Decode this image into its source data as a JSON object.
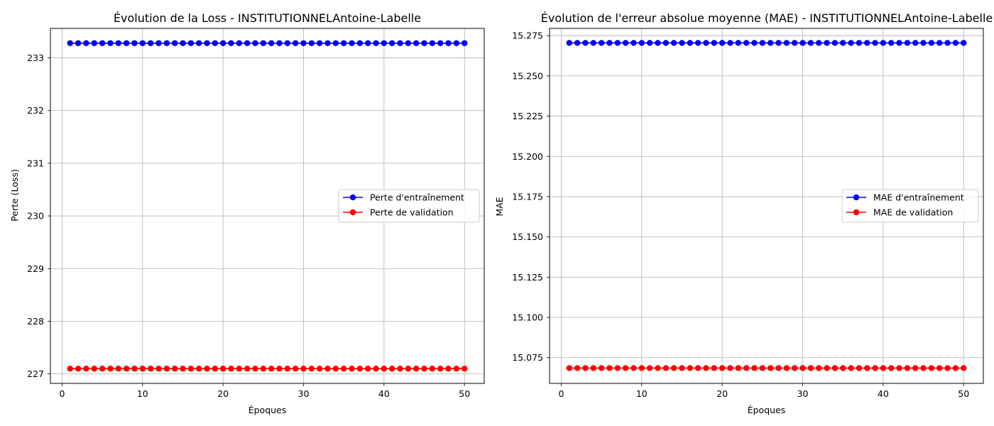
{
  "chart_data": [
    {
      "type": "line",
      "title": "Évolution de la Loss - INSTITUTIONNELAntoine-Labelle",
      "xlabel": "Époques",
      "ylabel": "Perte (Loss)",
      "xlim": [
        -1.45,
        52.45
      ],
      "ylim": [
        226.82,
        233.56
      ],
      "xticks": [
        0,
        10,
        20,
        30,
        40,
        50
      ],
      "yticks": [
        227,
        228,
        229,
        230,
        231,
        232,
        233
      ],
      "ytick_decimals": 0,
      "grid": true,
      "legend_position": "center-right",
      "x_start": 1,
      "x_end": 50,
      "series": [
        {
          "name": "Perte d'entraînement",
          "color": "#0000ff",
          "value": 233.28
        },
        {
          "name": "Perte de validation",
          "color": "#ff0000",
          "value": 227.1
        }
      ]
    },
    {
      "type": "line",
      "title": "Évolution de l'erreur absolue moyenne (MAE) - INSTITUTIONNELAntoine-Labelle",
      "xlabel": "Époques",
      "ylabel": "MAE",
      "xlim": [
        -1.45,
        52.45
      ],
      "ylim": [
        15.059,
        15.2795
      ],
      "xticks": [
        0,
        10,
        20,
        30,
        40,
        50
      ],
      "yticks": [
        15.075,
        15.1,
        15.125,
        15.15,
        15.175,
        15.2,
        15.225,
        15.25,
        15.275
      ],
      "ytick_decimals": 3,
      "grid": true,
      "legend_position": "center-right",
      "x_start": 1,
      "x_end": 50,
      "series": [
        {
          "name": "MAE d'entraînement",
          "color": "#0000ff",
          "value": 15.2705
        },
        {
          "name": "MAE de validation",
          "color": "#ff0000",
          "value": 15.0685
        }
      ]
    }
  ]
}
